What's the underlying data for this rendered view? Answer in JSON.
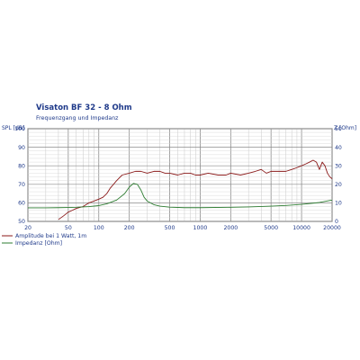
{
  "chart_data": {
    "type": "line",
    "title": "Visaton BF 32 - 8 Ohm",
    "subtitle": "Frequenzgang und Impedanz",
    "ylabel_left": "SPL [dB]",
    "ylabel_right": "Z [Ohm]",
    "x_scale": "log",
    "xlim": [
      20,
      20000
    ],
    "ylim_left": [
      50,
      100
    ],
    "ylim_right": [
      0,
      50
    ],
    "grid": true,
    "legend_position": "bottom-left",
    "x_ticks": [
      20,
      50,
      100,
      200,
      500,
      1000,
      2000,
      5000,
      10000,
      20000
    ],
    "x_tick_labels": [
      "20",
      "50",
      "100",
      "200",
      "500",
      "1000",
      "2000",
      "5000",
      "10000",
      "20000"
    ],
    "y_left_ticks": [
      50,
      60,
      70,
      80,
      90,
      100
    ],
    "y_right_ticks": [
      0,
      10,
      20,
      30,
      40,
      50
    ],
    "series": [
      {
        "name": "Amplitude bei 1 Watt, 1m",
        "axis": "left",
        "color": "#8b1a1a",
        "x": [
          40,
          45,
          50,
          55,
          60,
          70,
          80,
          90,
          100,
          110,
          120,
          130,
          150,
          170,
          200,
          230,
          260,
          300,
          350,
          400,
          450,
          500,
          600,
          700,
          800,
          900,
          1000,
          1200,
          1500,
          1800,
          2000,
          2500,
          3000,
          3500,
          4000,
          4500,
          5000,
          6000,
          7000,
          8000,
          9000,
          10000,
          11000,
          12000,
          13000,
          14000,
          15000,
          16000,
          17000,
          18000,
          19000,
          20000
        ],
        "y": [
          51,
          53,
          55,
          56,
          57,
          58,
          60,
          61,
          62,
          63,
          65,
          68,
          72,
          75,
          76,
          77,
          77,
          76,
          77,
          77,
          76,
          76,
          75,
          76,
          76,
          75,
          75,
          76,
          75,
          75,
          76,
          75,
          76,
          77,
          78,
          76,
          77,
          77,
          77,
          78,
          79,
          80,
          81,
          82,
          83,
          82,
          78,
          82,
          80,
          76,
          74,
          73
        ]
      },
      {
        "name": "Impedanz [Ohm]",
        "axis": "right",
        "color": "#2e7d32",
        "x": [
          20,
          30,
          40,
          50,
          60,
          80,
          100,
          120,
          150,
          180,
          200,
          220,
          240,
          260,
          280,
          300,
          350,
          400,
          500,
          700,
          1000,
          2000,
          3000,
          5000,
          7000,
          10000,
          15000,
          20000
        ],
        "y": [
          7.3,
          7.3,
          7.4,
          7.5,
          7.6,
          8,
          8.5,
          9.5,
          11.5,
          15,
          18.5,
          20.5,
          20,
          17,
          13,
          11,
          9,
          8.2,
          7.7,
          7.4,
          7.4,
          7.6,
          7.8,
          8.2,
          8.6,
          9.2,
          10.2,
          11.5
        ]
      }
    ]
  }
}
